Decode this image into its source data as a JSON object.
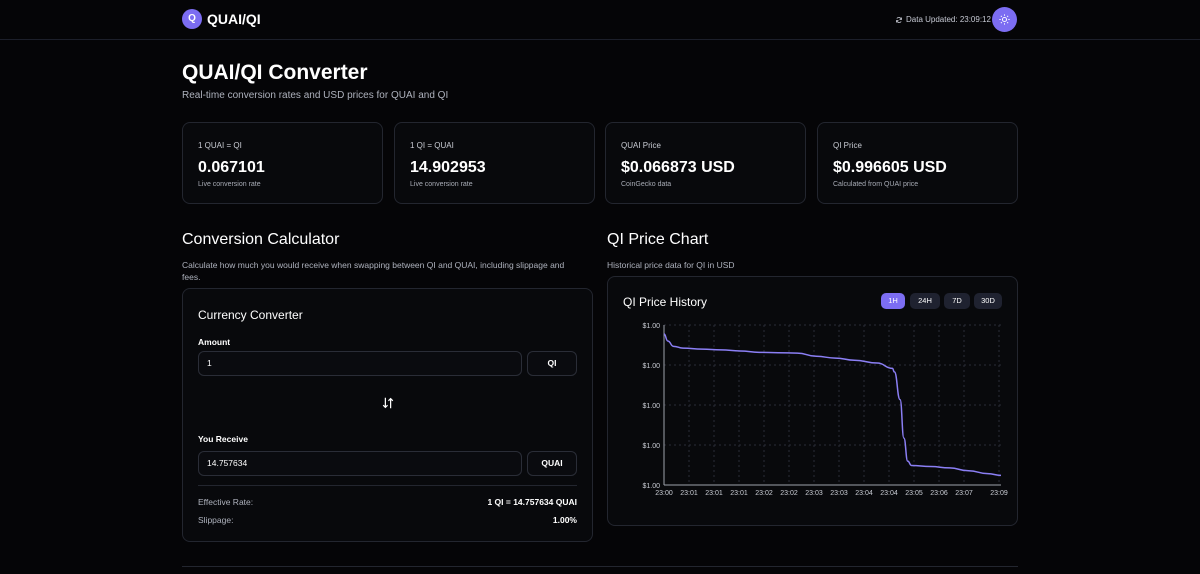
{
  "header": {
    "logo_letter": "Q",
    "brand": "QUAI/QI",
    "data_updated": "Data Updated: 23:09:12"
  },
  "page": {
    "title": "QUAI/QI Converter",
    "subtitle": "Real-time conversion rates and USD prices for QUAI and QI"
  },
  "stats": [
    {
      "label": "1 QUAI = QI",
      "value": "0.067101",
      "note": "Live conversion rate"
    },
    {
      "label": "1 QI = QUAI",
      "value": "14.902953",
      "note": "Live conversion rate"
    },
    {
      "label": "QUAI Price",
      "value": "$0.066873 USD",
      "note": "CoinGecko data"
    },
    {
      "label": "QI Price",
      "value": "$0.996605 USD",
      "note": "Calculated from QUAI price"
    }
  ],
  "calculator": {
    "section_title": "Conversion Calculator",
    "section_desc": "Calculate how much you would receive when swapping between QI and QUAI, including slippage and fees.",
    "card_title": "Currency Converter",
    "amount_label": "Amount",
    "amount_value": "1",
    "from_currency": "QI",
    "receive_label": "You Receive",
    "receive_value": "14.757634",
    "to_currency": "QUAI",
    "effective_rate_label": "Effective Rate:",
    "effective_rate_value": "1 QI = 14.757634 QUAI",
    "slippage_label": "Slippage:",
    "slippage_value": "1.00%"
  },
  "chart_section": {
    "section_title": "QI Price Chart",
    "section_desc": "Historical price data for QI in USD",
    "card_title": "QI Price History",
    "ranges": [
      "1H",
      "24H",
      "7D",
      "30D"
    ],
    "active_range": "1H"
  },
  "colors": {
    "accent": "#7c6df2",
    "background": "#050507",
    "card": "#08090c",
    "border": "#23262f",
    "line": "#8b7ff5"
  },
  "chart_data": {
    "type": "line",
    "title": "QI Price History",
    "x_tick_labels": [
      "23:00",
      "23:01",
      "23:01",
      "23:01",
      "23:02",
      "23:02",
      "23:03",
      "23:03",
      "23:04",
      "23:04",
      "23:05",
      "23:06",
      "23:07",
      "23:09"
    ],
    "y_tick_labels": [
      "$1.00",
      "$1.00",
      "$1.00",
      "$1.00",
      "$1.00"
    ],
    "series": [
      {
        "x": [
          0,
          0.1,
          0.25,
          0.5,
          1.0,
          1.5,
          2.0,
          2.5,
          3.0,
          3.5,
          4.0,
          4.5,
          5.0,
          5.6,
          6.0,
          6.05,
          6.2,
          6.3,
          6.4,
          6.5,
          7.0,
          7.5,
          8.0,
          8.5,
          8.85
        ],
        "y": [
          0.99925,
          0.99905,
          0.9989,
          0.99885,
          0.99882,
          0.9988,
          0.99877,
          0.99873,
          0.99872,
          0.99871,
          0.99862,
          0.99857,
          0.99851,
          0.99843,
          0.99828,
          0.99818,
          0.9974,
          0.99632,
          0.99567,
          0.99555,
          0.99552,
          0.99548,
          0.9954,
          0.99532,
          0.99527
        ]
      }
    ],
    "xlim": [
      0,
      8.85
    ],
    "ylim": [
      0.995,
      0.9995
    ],
    "grid": true,
    "legend": "none"
  }
}
